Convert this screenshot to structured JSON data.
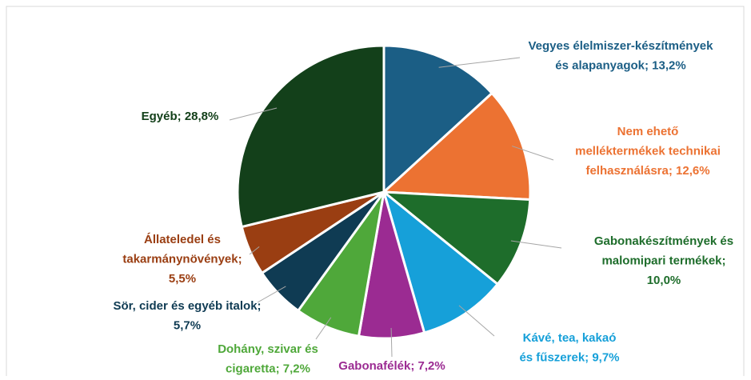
{
  "chart_data": {
    "type": "pie",
    "values": [
      13.2,
      12.6,
      10.0,
      9.7,
      7.2,
      7.2,
      5.7,
      5.5,
      28.8
    ],
    "value_labels": [
      [
        "Vegyes élelmiszer-készítmények",
        "és alapanyagok; 13,2%"
      ],
      [
        "Nem ehető",
        "melléktermékek technikai",
        "felhasználásra; 12,6%"
      ],
      [
        "Gabonakészítmények és",
        "malomipari termékek;",
        "10,0%"
      ],
      [
        "Kávé, tea, kakaó",
        "és fűszerek; 9,7%"
      ],
      [
        "Gabonafélék; 7,2%"
      ],
      [
        "Dohány, szivar és",
        "cigaretta; 7,2%"
      ],
      [
        "Sör, cider és egyéb italok;",
        "5,7%"
      ],
      [
        "Állateledel és",
        "takarmánynövények;",
        "5,5%"
      ],
      [
        "Egyéb; 28,8%"
      ]
    ],
    "colors": [
      "#1b5e85",
      "#ec7232",
      "#1e6d2b",
      "#16a0d9",
      "#9b2b92",
      "#4fa83a",
      "#0f3b53",
      "#9a3e12",
      "#13401a"
    ],
    "label_colors": [
      "#1b5e85",
      "#ec7232",
      "#1e6d2b",
      "#16a0d9",
      "#9b2b92",
      "#4fa83a",
      "#0f3b53",
      "#9a3e12",
      "#13401a"
    ]
  }
}
